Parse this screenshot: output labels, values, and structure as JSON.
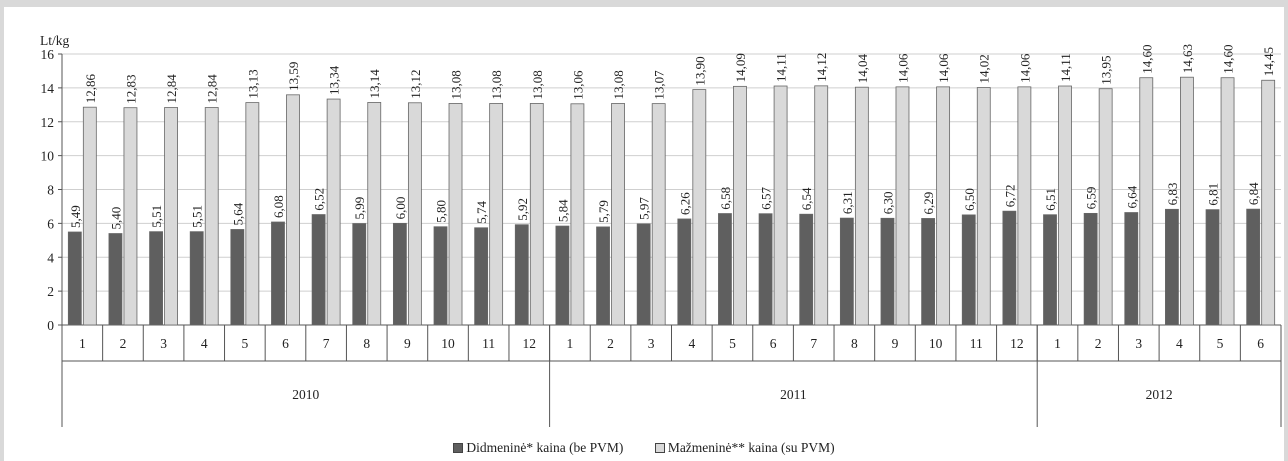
{
  "chart_data": {
    "type": "bar",
    "ylabel": "Lt/kg",
    "ylim": [
      0,
      16
    ],
    "yticks": [
      "0",
      "2",
      "4",
      "6",
      "8",
      "10",
      "12",
      "14",
      "16"
    ],
    "grid": "horizontal",
    "legend_position": "bottom",
    "categories": [
      "1",
      "2",
      "3",
      "4",
      "5",
      "6",
      "7",
      "8",
      "9",
      "10",
      "11",
      "12",
      "1",
      "2",
      "3",
      "4",
      "5",
      "6",
      "7",
      "8",
      "9",
      "10",
      "11",
      "12",
      "1",
      "2",
      "3",
      "4",
      "5",
      "6"
    ],
    "groups": [
      {
        "label": "2010",
        "count": 12
      },
      {
        "label": "2011",
        "count": 12
      },
      {
        "label": "2012",
        "count": 6
      }
    ],
    "series": [
      {
        "name": "Didmeninė* kaina (be PVM)",
        "color": "#5f5f5f",
        "values": [
          5.49,
          5.4,
          5.51,
          5.51,
          5.64,
          6.08,
          6.52,
          5.99,
          6.0,
          5.8,
          5.74,
          5.92,
          5.84,
          5.79,
          5.97,
          6.26,
          6.58,
          6.57,
          6.54,
          6.31,
          6.3,
          6.29,
          6.5,
          6.72,
          6.51,
          6.59,
          6.64,
          6.83,
          6.81,
          6.84
        ],
        "labels": [
          "5,49",
          "5,40",
          "5,51",
          "5,51",
          "5,64",
          "6,08",
          "6,52",
          "5,99",
          "6,00",
          "5,80",
          "5,74",
          "5,92",
          "5,84",
          "5,79",
          "5,97",
          "6,26",
          "6,58",
          "6,57",
          "6,54",
          "6,31",
          "6,30",
          "6,29",
          "6,50",
          "6,72",
          "6,51",
          "6,59",
          "6,64",
          "6,83",
          "6,81",
          "6,84"
        ]
      },
      {
        "name": "Mažmeninė** kaina (su PVM)",
        "color": "#d9d9d9",
        "values": [
          12.86,
          12.83,
          12.84,
          12.84,
          13.13,
          13.59,
          13.34,
          13.14,
          13.12,
          13.08,
          13.08,
          13.08,
          13.06,
          13.08,
          13.07,
          13.9,
          14.09,
          14.11,
          14.12,
          14.04,
          14.06,
          14.06,
          14.02,
          14.06,
          14.11,
          13.95,
          14.6,
          14.63,
          14.6,
          14.45
        ],
        "labels": [
          "12,86",
          "12,83",
          "12,84",
          "12,84",
          "13,13",
          "13,59",
          "13,34",
          "13,14",
          "13,12",
          "13,08",
          "13,08",
          "13,08",
          "13,06",
          "13,08",
          "13,07",
          "13,90",
          "14,09",
          "14,11",
          "14,12",
          "14,04",
          "14,06",
          "14,06",
          "14,02",
          "14,06",
          "14,11",
          "13,95",
          "14,60",
          "14,63",
          "14,60",
          "14,45"
        ]
      }
    ]
  },
  "legend": {
    "items": [
      {
        "label": "Didmeninė* kaina (be PVM)",
        "icon": "dark-gray-square-icon",
        "color": "#5f5f5f"
      },
      {
        "label": "Mažmeninė** kaina (su PVM)",
        "icon": "light-gray-square-icon",
        "color": "#d9d9d9"
      }
    ]
  }
}
